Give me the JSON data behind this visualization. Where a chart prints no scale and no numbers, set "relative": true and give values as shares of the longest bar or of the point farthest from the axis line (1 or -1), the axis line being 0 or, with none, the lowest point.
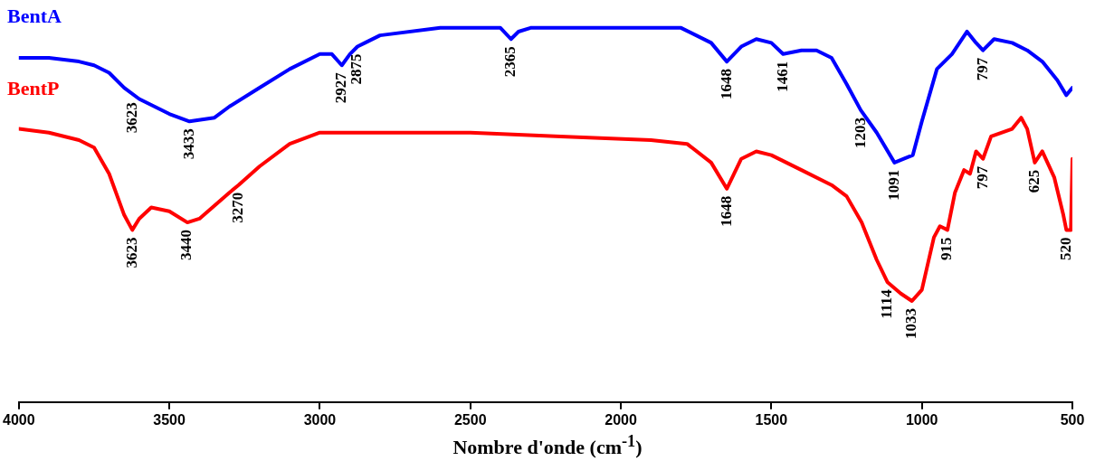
{
  "chart_data": {
    "type": "line",
    "xlabel": "Nombre d'onde (cm$^{-1}$)",
    "relative": true,
    "xlim": [
      4000,
      500
    ],
    "xticks": [
      4000,
      3500,
      3000,
      2500,
      2000,
      1500,
      1000,
      500
    ],
    "grid": false,
    "legend": "top left",
    "marker": "none",
    "line_style": "solid",
    "series": [
      {
        "name": "BentA",
        "color": "#0000ff",
        "x": [
          4000,
          3900,
          3800,
          3750,
          3700,
          3650,
          3600,
          3550,
          3500,
          3433,
          3350,
          3300,
          3200,
          3100,
          3000,
          2960,
          2927,
          2900,
          2875,
          2850,
          2800,
          2600,
          2400,
          2365,
          2340,
          2300,
          2000,
          1800,
          1700,
          1648,
          1600,
          1550,
          1500,
          1461,
          1400,
          1350,
          1300,
          1250,
          1203,
          1150,
          1091,
          1060,
          1030,
          1000,
          950,
          900,
          850,
          820,
          797,
          760,
          700,
          650,
          600,
          550,
          520,
          500
        ],
        "values": [
          0.92,
          0.92,
          0.91,
          0.9,
          0.88,
          0.84,
          0.81,
          0.79,
          0.77,
          0.75,
          0.76,
          0.79,
          0.84,
          0.89,
          0.93,
          0.93,
          0.9,
          0.93,
          0.95,
          0.96,
          0.98,
          1.0,
          1.0,
          0.97,
          0.99,
          1.0,
          1.0,
          1.0,
          0.96,
          0.91,
          0.95,
          0.97,
          0.96,
          0.93,
          0.94,
          0.94,
          0.92,
          0.85,
          0.78,
          0.72,
          0.64,
          0.65,
          0.66,
          0.75,
          0.89,
          0.93,
          0.99,
          0.96,
          0.94,
          0.97,
          0.96,
          0.94,
          0.91,
          0.86,
          0.82,
          0.84
        ]
      },
      {
        "name": "BentP",
        "color": "#ff0000",
        "x": [
          4000,
          3900,
          3800,
          3750,
          3700,
          3650,
          3623,
          3600,
          3560,
          3500,
          3440,
          3400,
          3300,
          3270,
          3200,
          3100,
          3000,
          2900,
          2500,
          2200,
          1900,
          1780,
          1700,
          1648,
          1600,
          1550,
          1500,
          1400,
          1300,
          1250,
          1200,
          1150,
          1114,
          1070,
          1033,
          1000,
          960,
          940,
          915,
          890,
          860,
          840,
          820,
          797,
          770,
          700,
          670,
          650,
          625,
          600,
          560,
          530,
          520,
          505,
          500
        ],
        "values": [
          0.73,
          0.72,
          0.7,
          0.68,
          0.61,
          0.5,
          0.46,
          0.49,
          0.52,
          0.51,
          0.48,
          0.49,
          0.56,
          0.58,
          0.63,
          0.69,
          0.72,
          0.72,
          0.72,
          0.71,
          0.7,
          0.69,
          0.64,
          0.57,
          0.65,
          0.67,
          0.66,
          0.62,
          0.58,
          0.55,
          0.48,
          0.38,
          0.32,
          0.29,
          0.27,
          0.3,
          0.44,
          0.47,
          0.46,
          0.56,
          0.62,
          0.61,
          0.67,
          0.65,
          0.71,
          0.73,
          0.76,
          0.73,
          0.64,
          0.67,
          0.6,
          0.5,
          0.46,
          0.46,
          0.65
        ]
      }
    ],
    "annotations": [
      {
        "text": "3623",
        "x": 3623,
        "y": 0.82
      },
      {
        "text": "3433",
        "x": 3433,
        "y": 0.75
      },
      {
        "text": "2927",
        "x": 2927,
        "y": 0.9
      },
      {
        "text": "2875",
        "x": 2875,
        "y": 0.95
      },
      {
        "text": "2365",
        "x": 2365,
        "y": 0.97
      },
      {
        "text": "1648",
        "x": 1648,
        "y": 0.91
      },
      {
        "text": "1461",
        "x": 1461,
        "y": 0.93
      },
      {
        "text": "1203",
        "x": 1203,
        "y": 0.78
      },
      {
        "text": "1091",
        "x": 1091,
        "y": 0.64
      },
      {
        "text": "797",
        "x": 797,
        "y": 0.94
      },
      {
        "text": "3623",
        "x": 3623,
        "y": 0.46
      },
      {
        "text": "3440",
        "x": 3440,
        "y": 0.48
      },
      {
        "text": "3270",
        "x": 3270,
        "y": 0.58
      },
      {
        "text": "1648",
        "x": 1648,
        "y": 0.57
      },
      {
        "text": "1114",
        "x": 1114,
        "y": 0.32
      },
      {
        "text": "1033",
        "x": 1033,
        "y": 0.27
      },
      {
        "text": "915",
        "x": 915,
        "y": 0.46
      },
      {
        "text": "797",
        "x": 797,
        "y": 0.65
      },
      {
        "text": "625",
        "x": 625,
        "y": 0.64
      },
      {
        "text": "520",
        "x": 520,
        "y": 0.46
      }
    ]
  }
}
